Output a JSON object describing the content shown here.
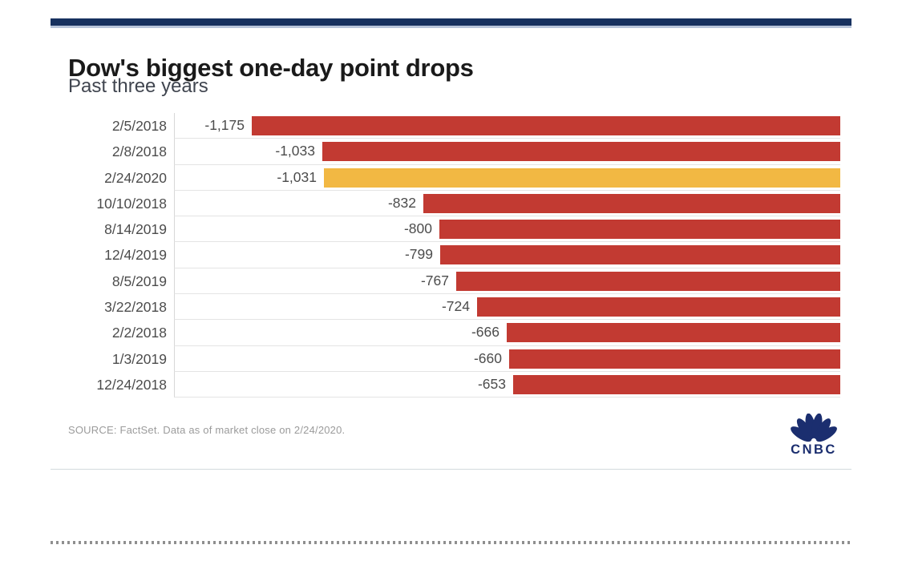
{
  "header": {
    "title": "Dow's biggest one-day point drops",
    "subtitle": "Past three years"
  },
  "footer": {
    "source": "SOURCE: FactSet. Data as of market close on 2/24/2020.",
    "logo": "CNBC"
  },
  "colors": {
    "top_bar": "#17315f",
    "top_bar_underline": "#b8c5da",
    "title": "#1a1a1a",
    "subtitle": "#40454f",
    "label": "#4c4c4c",
    "axis_line": "#d8d8d8",
    "grid": "#e4e4e4",
    "bar_default": "#c23a32",
    "bar_highlight": "#f2b843",
    "source": "#9b9b9b",
    "divider": "#d3dadd",
    "dashes": "#8f8f8f",
    "logo": "#1b2e6f"
  },
  "chart_data": {
    "type": "bar",
    "orientation": "horizontal",
    "anchor": "right",
    "title": "Dow's biggest one-day point drops",
    "subtitle": "Past three years",
    "xlabel": "",
    "ylabel": "",
    "legend_shown": false,
    "grid": "row-separators",
    "categories": [
      "2/5/2018",
      "2/8/2018",
      "2/24/2020",
      "10/10/2018",
      "8/14/2019",
      "12/4/2019",
      "8/5/2019",
      "3/22/2018",
      "2/2/2018",
      "1/3/2019",
      "12/24/2018"
    ],
    "values": [
      -1175,
      -1033,
      -1031,
      -832,
      -800,
      -799,
      -767,
      -724,
      -666,
      -660,
      -653
    ],
    "value_labels": [
      "-1,175",
      "-1,033",
      "-1,031",
      "-832",
      "-800",
      "-799",
      "-767",
      "-724",
      "-666",
      "-660",
      "-653"
    ],
    "highlight_index": 2,
    "highlight_category": "2/24/2020",
    "xlim_points": [
      -1330,
      0
    ]
  }
}
